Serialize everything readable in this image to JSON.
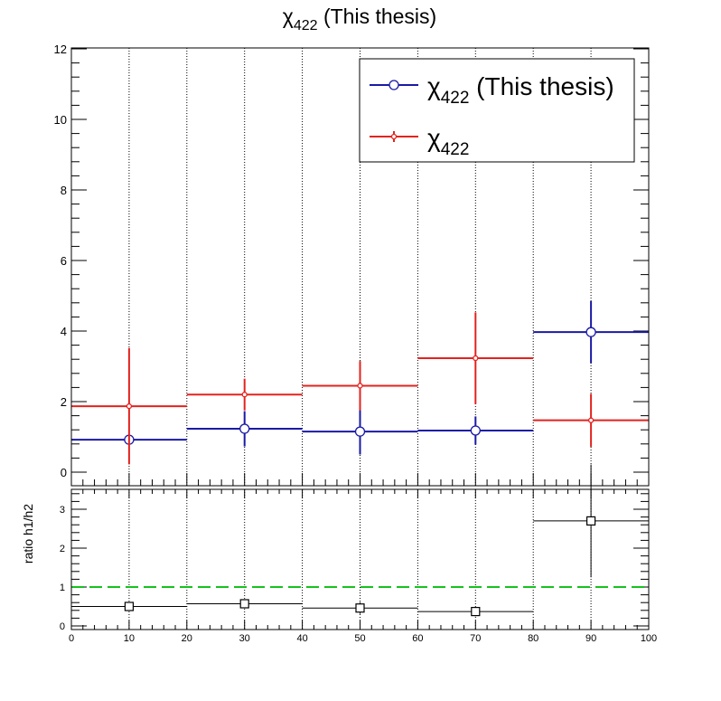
{
  "chart_data": [
    {
      "type": "scatter",
      "panel": "main",
      "title": {
        "main": "χ",
        "sub": "422",
        "rest": " (This thesis)"
      },
      "xlim": [
        0,
        100
      ],
      "ylim": [
        0,
        12
      ],
      "yticks": [
        "0",
        "2",
        "4",
        "6",
        "8",
        "10",
        "12"
      ],
      "grid": "vertical dotted",
      "legend_position": "top-right",
      "series": [
        {
          "name": {
            "main": "χ",
            "sub": "422",
            "rest": " (This thesis)"
          },
          "color": "#1a1aa6",
          "marker": "open-circle",
          "x": [
            10,
            30,
            50,
            70,
            90
          ],
          "y": [
            0.92,
            1.23,
            1.15,
            1.18,
            3.97
          ],
          "yerr": [
            0.0,
            0.5,
            0.65,
            0.4,
            0.88
          ],
          "xerr": [
            10,
            10,
            10,
            10,
            10
          ]
        },
        {
          "name": {
            "main": "χ",
            "sub": "422",
            "rest": ""
          },
          "color": "#e3231f",
          "marker": "small-dot",
          "x": [
            10,
            30,
            50,
            70,
            90
          ],
          "y": [
            1.87,
            2.2,
            2.45,
            3.23,
            1.47
          ],
          "yerr": [
            1.65,
            0.45,
            0.7,
            1.3,
            0.75
          ],
          "xerr": [
            10,
            10,
            10,
            10,
            10
          ]
        }
      ]
    },
    {
      "type": "scatter",
      "panel": "ratio",
      "ylabel": "ratio h1/h2",
      "xlim": [
        0,
        100
      ],
      "ylim": [
        -0.1,
        3.6
      ],
      "xticks": [
        "0",
        "10",
        "20",
        "30",
        "40",
        "50",
        "60",
        "70",
        "80",
        "90",
        "100"
      ],
      "yticks": [
        "0",
        "1",
        "2",
        "3"
      ],
      "reference_line": {
        "y": 1,
        "color": "#17c21e",
        "style": "dashed"
      },
      "series": [
        {
          "color": "#000000",
          "marker": "open-square",
          "x": [
            10,
            30,
            50,
            70,
            90
          ],
          "y": [
            0.5,
            0.57,
            0.46,
            0.37,
            2.7
          ],
          "yerr": [
            0.1,
            0.1,
            0.15,
            0.12,
            1.45
          ],
          "xerr": [
            10,
            10,
            10,
            10,
            10
          ]
        }
      ]
    }
  ]
}
